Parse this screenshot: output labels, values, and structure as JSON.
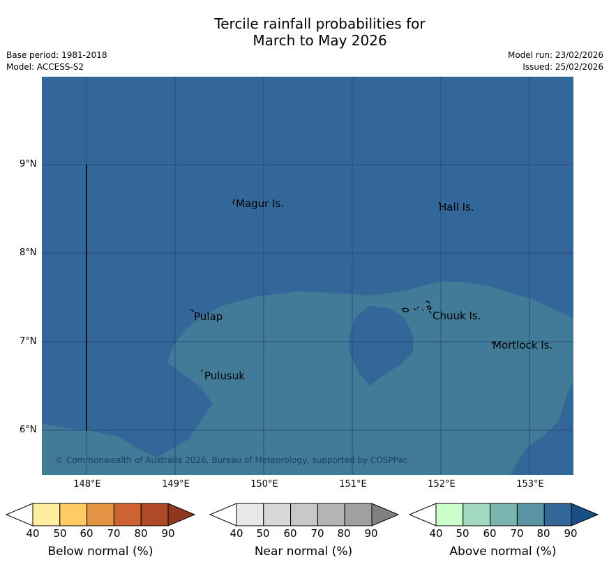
{
  "header": {
    "title_line1": "Tercile rainfall probabilities for",
    "title_line2": "March to May 2026",
    "base_period": "Base period: 1981-2018",
    "model": "Model: ACCESS-S2",
    "model_run": "Model run: 23/02/2026",
    "issued": "Issued: 25/02/2026"
  },
  "map": {
    "y_axis_labels": [
      "9°N",
      "8°N",
      "7°N",
      "6°N"
    ],
    "x_axis_labels": [
      "148°E",
      "149°E",
      "150°E",
      "151°E",
      "152°E",
      "153°E"
    ],
    "places": {
      "magur": "Magur Is.",
      "hall": "Hall Is.",
      "pulap": "Pulap",
      "chuuk": "Chuuk Is.",
      "mortlock": "Mortlock Is.",
      "pulusuk": "Pulusuk"
    },
    "copyright": "© Commonwealth of Australia 2026, Bureau of Meteorology, supported by COSPPac",
    "colors": {
      "above_80": "#336699",
      "above_70": "#427B97"
    }
  },
  "legends": [
    {
      "label": "Below normal (%)",
      "ticks": [
        "40",
        "50",
        "60",
        "70",
        "80",
        "90"
      ],
      "colors": [
        "#ffffff",
        "#FFEDA0",
        "#FECB65",
        "#E29444",
        "#CD6332",
        "#AF4A27",
        "#8F3820"
      ]
    },
    {
      "label": "Near normal (%)",
      "ticks": [
        "40",
        "50",
        "60",
        "70",
        "80",
        "90"
      ],
      "colors": [
        "#ffffff",
        "#E8E8E8",
        "#D8D8D8",
        "#C8C8C8",
        "#B4B4B4",
        "#A0A0A0",
        "#808080"
      ]
    },
    {
      "label": "Above normal (%)",
      "ticks": [
        "40",
        "50",
        "60",
        "70",
        "80",
        "90"
      ],
      "colors": [
        "#ffffff",
        "#CCFFCC",
        "#A3D9C0",
        "#7BB5B0",
        "#5A93A3",
        "#336699",
        "#194E83"
      ]
    }
  ]
}
